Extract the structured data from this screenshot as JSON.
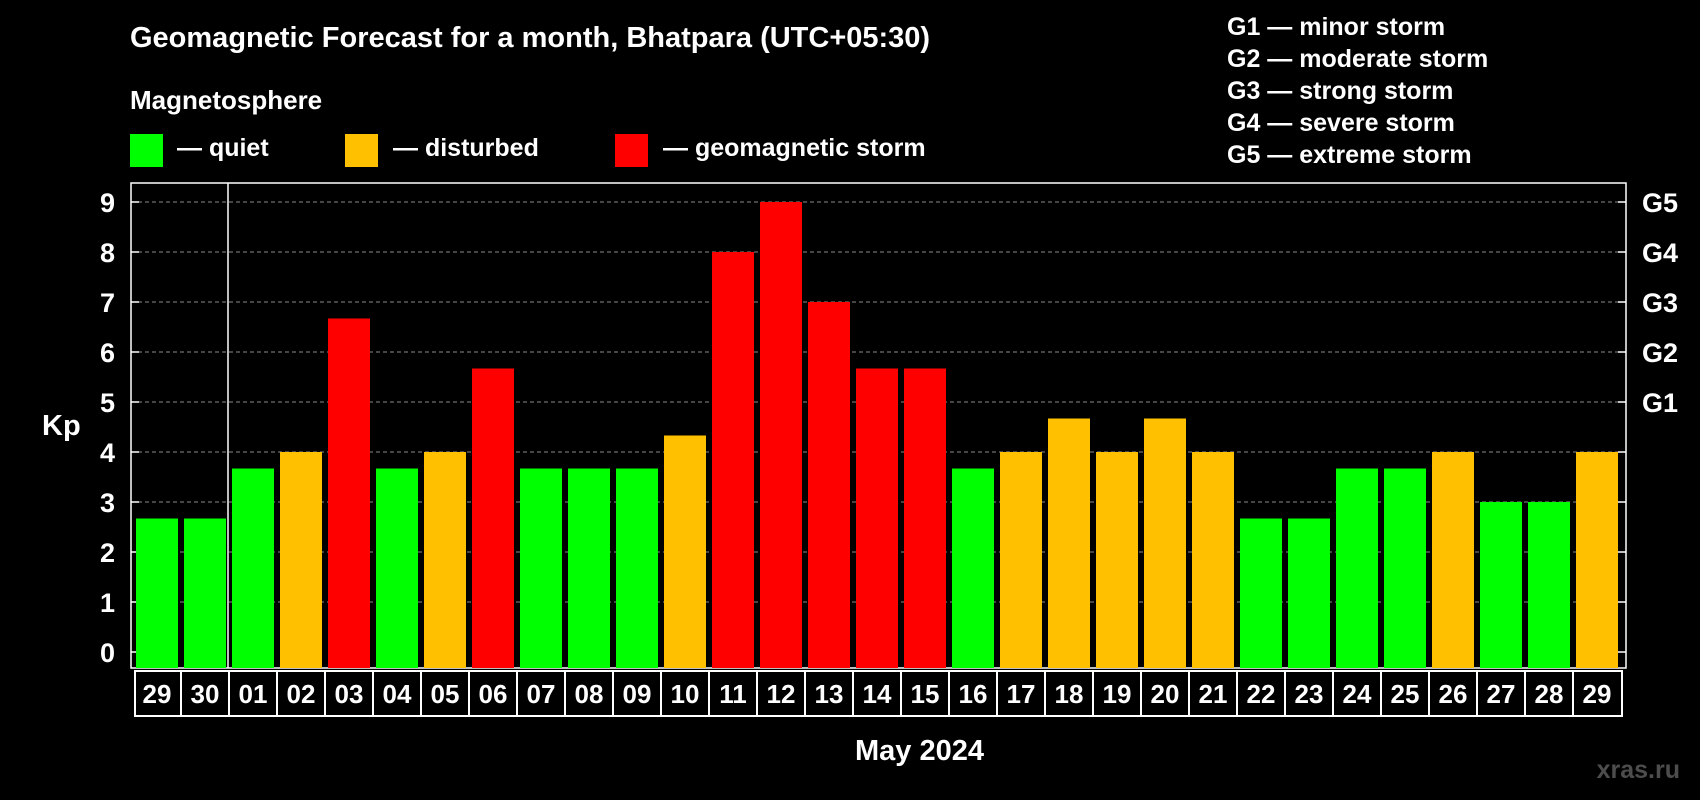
{
  "title": "Geomagnetic Forecast for a month, Bhatpara (UTC+05:30)",
  "magnetosphere": {
    "heading": "Magnetosphere",
    "items": [
      {
        "label": "— quiet",
        "color": "#00ff00"
      },
      {
        "label": "— disturbed",
        "color": "#ffc000"
      },
      {
        "label": "— geomagnetic storm",
        "color": "#ff0000"
      }
    ]
  },
  "storm_legend": [
    "G1 — minor storm",
    "G2 — moderate storm",
    "G3 — strong storm",
    "G4 — severe storm",
    "G5 — extreme storm"
  ],
  "watermark": "xras.ru",
  "chart_data": {
    "type": "bar",
    "title": "Geomagnetic Forecast for a month, Bhatpara (UTC+05:30)",
    "xlabel": "May 2024",
    "ylabel": "Kp",
    "ylim": [
      0,
      9
    ],
    "yticks": [
      "0",
      "1",
      "2",
      "3",
      "4",
      "5",
      "6",
      "7",
      "8",
      "9"
    ],
    "right_ticks": [
      {
        "kp": 5,
        "label": "G1"
      },
      {
        "kp": 6,
        "label": "G2"
      },
      {
        "kp": 7,
        "label": "G3"
      },
      {
        "kp": 8,
        "label": "G4"
      },
      {
        "kp": 9,
        "label": "G5"
      }
    ],
    "grid": true,
    "categories": [
      "29",
      "30",
      "01",
      "02",
      "03",
      "04",
      "05",
      "06",
      "07",
      "08",
      "09",
      "10",
      "11",
      "12",
      "13",
      "14",
      "15",
      "16",
      "17",
      "18",
      "19",
      "20",
      "21",
      "22",
      "23",
      "24",
      "25",
      "26",
      "27",
      "28",
      "29"
    ],
    "values": [
      2.67,
      2.67,
      3.67,
      4,
      6.67,
      3.67,
      4,
      5.67,
      3.67,
      3.67,
      3.67,
      4.33,
      8,
      9,
      7,
      5.67,
      5.67,
      3.67,
      4,
      4.67,
      4,
      4.67,
      4,
      2.67,
      2.67,
      3.67,
      3.67,
      4,
      3,
      3,
      4
    ],
    "levels": [
      "quiet",
      "quiet",
      "quiet",
      "disturbed",
      "storm",
      "quiet",
      "disturbed",
      "storm",
      "quiet",
      "quiet",
      "quiet",
      "disturbed",
      "storm",
      "storm",
      "storm",
      "storm",
      "storm",
      "quiet",
      "disturbed",
      "disturbed",
      "disturbed",
      "disturbed",
      "disturbed",
      "quiet",
      "quiet",
      "quiet",
      "quiet",
      "disturbed",
      "quiet",
      "quiet",
      "disturbed"
    ],
    "level_colors": {
      "quiet": "#00ff00",
      "disturbed": "#ffc000",
      "storm": "#ff0000"
    }
  }
}
